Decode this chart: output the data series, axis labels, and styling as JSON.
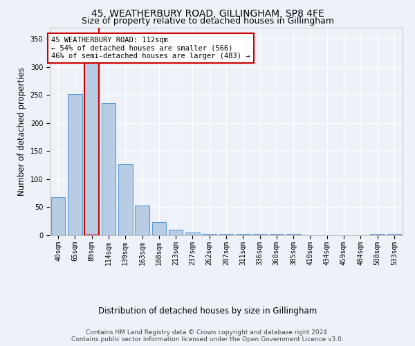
{
  "title": "45, WEATHERBURY ROAD, GILLINGHAM, SP8 4FE",
  "subtitle": "Size of property relative to detached houses in Gillingham",
  "xlabel": "Distribution of detached houses by size in Gillingham",
  "ylabel": "Number of detached properties",
  "categories": [
    "40sqm",
    "65sqm",
    "89sqm",
    "114sqm",
    "139sqm",
    "163sqm",
    "188sqm",
    "213sqm",
    "237sqm",
    "262sqm",
    "287sqm",
    "311sqm",
    "336sqm",
    "360sqm",
    "385sqm",
    "410sqm",
    "434sqm",
    "459sqm",
    "484sqm",
    "508sqm",
    "533sqm"
  ],
  "values": [
    68,
    251,
    332,
    236,
    127,
    53,
    23,
    10,
    5,
    3,
    2,
    2,
    2,
    2,
    2,
    0,
    0,
    0,
    0,
    3,
    2
  ],
  "bar_color": "#b8cce4",
  "bar_edge_color": "#5b9bd5",
  "highlight_bar_index": 2,
  "highlight_bar_edge_color": "#cc0000",
  "red_line_bar_index": 2,
  "ylim": [
    0,
    370
  ],
  "yticks": [
    0,
    50,
    100,
    150,
    200,
    250,
    300,
    350
  ],
  "annotation_text": "45 WEATHERBURY ROAD: 112sqm\n← 54% of detached houses are smaller (566)\n46% of semi-detached houses are larger (483) →",
  "annotation_box_color": "#ffffff",
  "annotation_border_color": "#cc0000",
  "footer_line1": "Contains HM Land Registry data © Crown copyright and database right 2024.",
  "footer_line2": "Contains public sector information licensed under the Open Government Licence v3.0.",
  "background_color": "#eef2f8",
  "grid_color": "#ffffff",
  "title_fontsize": 10,
  "subtitle_fontsize": 9,
  "axis_label_fontsize": 8.5,
  "tick_fontsize": 7,
  "annotation_fontsize": 7.5,
  "footer_fontsize": 6.5
}
